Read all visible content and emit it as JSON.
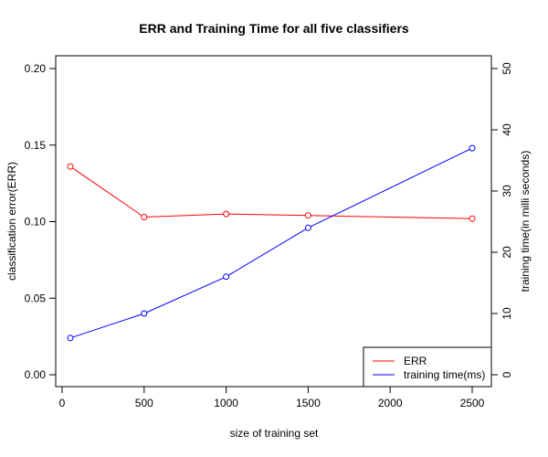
{
  "chart_data": {
    "type": "line",
    "title": "ERR and Training Time for all five classifiers",
    "xlabel": "size of training set",
    "ylabel": "classification error(ERR)",
    "y2label": "training time(in milli seconds)",
    "xlim": [
      0,
      2600
    ],
    "ylim": [
      0,
      0.2
    ],
    "y2lim": [
      0,
      50
    ],
    "x_ticks": [
      0,
      500,
      1000,
      1500,
      2000,
      2500
    ],
    "y_ticks": [
      0.0,
      0.05,
      0.1,
      0.15,
      0.2
    ],
    "y_tick_labels": [
      "0.00",
      "0.05",
      "0.10",
      "0.15",
      "0.20"
    ],
    "y2_ticks": [
      0,
      10,
      20,
      30,
      40,
      50
    ],
    "y2_tick_labels": [
      "0",
      "10",
      "20",
      "30",
      "40",
      "50"
    ],
    "grid": false,
    "legend_position": "bottom-right",
    "series": [
      {
        "name": "ERR",
        "axis": "left",
        "color": "#ff0000",
        "x": [
          50,
          500,
          1000,
          1500,
          2500
        ],
        "y": [
          0.136,
          0.103,
          0.105,
          0.104,
          0.102
        ]
      },
      {
        "name": "training time(ms)",
        "axis": "right",
        "color": "#0000ff",
        "x": [
          50,
          500,
          1000,
          1500,
          2500
        ],
        "y": [
          6,
          10,
          16,
          24,
          37
        ]
      }
    ]
  }
}
